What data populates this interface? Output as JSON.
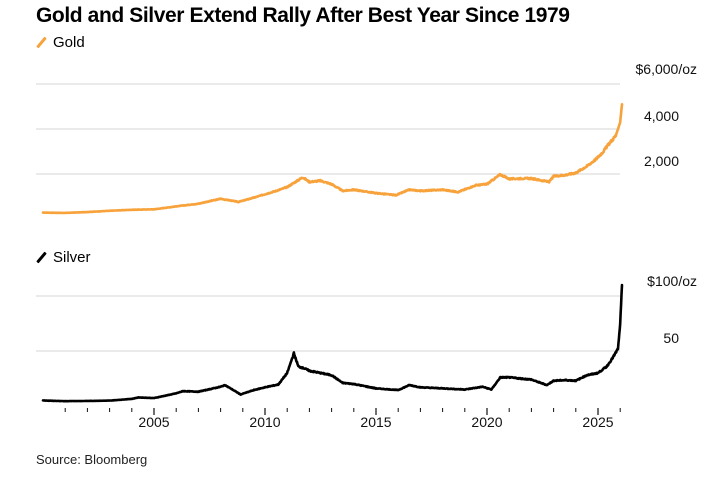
{
  "title": "Gold and Silver Extend Rally After Best Year Since 1979",
  "source": "Source: Bloomberg",
  "colors": {
    "gold": "#f7a23a",
    "silver": "#000000",
    "grid": "#dddddd"
  },
  "chart_data": [
    {
      "type": "line",
      "title": "Gold",
      "legend": "Gold",
      "legend_placement": "top-left",
      "unit_label": "$6,000/oz",
      "ylabel": "",
      "ylim": [
        0,
        6000
      ],
      "yticks": [
        2000,
        4000,
        6000
      ],
      "ytick_labels": [
        "2,000",
        "4,000",
        "$6,000/oz"
      ],
      "grid": true,
      "x": [
        2000.0,
        2001.0,
        2002.0,
        2003.0,
        2004.0,
        2005.0,
        2006.0,
        2006.5,
        2007.0,
        2008.0,
        2008.8,
        2009.5,
        2010.0,
        2010.5,
        2011.0,
        2011.7,
        2012.0,
        2012.5,
        2013.0,
        2013.5,
        2014.0,
        2015.0,
        2015.9,
        2016.5,
        2017.0,
        2018.0,
        2018.7,
        2019.5,
        2020.0,
        2020.6,
        2021.0,
        2021.5,
        2022.0,
        2022.8,
        2023.0,
        2023.5,
        2024.0,
        2024.5,
        2024.9,
        2025.2,
        2025.5,
        2025.8,
        2026.0,
        2026.08
      ],
      "series": [
        {
          "name": "Gold",
          "values": [
            285,
            270,
            310,
            365,
            410,
            430,
            560,
            620,
            680,
            900,
            760,
            950,
            1100,
            1250,
            1420,
            1850,
            1650,
            1700,
            1550,
            1250,
            1300,
            1150,
            1060,
            1300,
            1250,
            1300,
            1200,
            1500,
            1550,
            1980,
            1780,
            1800,
            1800,
            1650,
            1900,
            1950,
            2050,
            2350,
            2650,
            2950,
            3350,
            3700,
            4300,
            5100
          ]
        }
      ]
    },
    {
      "type": "line",
      "title": "Silver",
      "legend": "Silver",
      "legend_placement": "top-left",
      "unit_label": "$100/oz",
      "ylabel": "",
      "ylim": [
        0,
        100
      ],
      "yticks": [
        50,
        100
      ],
      "ytick_labels": [
        "50",
        "$100/oz"
      ],
      "grid": true,
      "xlabel": "",
      "xticks_major": [
        2005,
        2010,
        2015,
        2020,
        2025
      ],
      "xtick_labels": [
        "2005",
        "2010",
        "2015",
        "2020",
        "2025"
      ],
      "xticks_minor": [
        2001,
        2002,
        2003,
        2004,
        2006,
        2007,
        2008,
        2009,
        2011,
        2012,
        2013,
        2014,
        2016,
        2017,
        2018,
        2019,
        2021,
        2022,
        2023,
        2024,
        2026
      ],
      "x": [
        2000.0,
        2001.0,
        2002.0,
        2003.0,
        2004.0,
        2004.3,
        2005.0,
        2006.0,
        2006.3,
        2007.0,
        2008.0,
        2008.2,
        2008.9,
        2009.5,
        2010.0,
        2010.6,
        2011.0,
        2011.3,
        2011.5,
        2011.8,
        2012.0,
        2012.5,
        2013.0,
        2013.5,
        2014.0,
        2015.0,
        2016.0,
        2016.5,
        2017.0,
        2018.0,
        2019.0,
        2019.8,
        2020.2,
        2020.6,
        2021.0,
        2021.5,
        2022.0,
        2022.7,
        2023.0,
        2023.5,
        2024.0,
        2024.5,
        2025.0,
        2025.4,
        2025.7,
        2025.9,
        2026.0,
        2026.08
      ],
      "series": [
        {
          "name": "Silver",
          "values": [
            5.0,
            4.4,
            4.6,
            4.9,
            6.5,
            7.8,
            7.2,
            11.5,
            13.5,
            13.0,
            17.5,
            19.0,
            10.5,
            14.5,
            17.0,
            19.5,
            30.0,
            48.0,
            36.0,
            34.0,
            32.0,
            30.0,
            28.0,
            21.0,
            20.0,
            16.0,
            14.5,
            19.0,
            17.0,
            16.0,
            15.0,
            17.5,
            15.0,
            26.0,
            26.0,
            25.0,
            24.0,
            19.0,
            23.0,
            23.5,
            23.0,
            28.0,
            30.0,
            36.0,
            45.0,
            52.0,
            75.0,
            110.0
          ]
        }
      ]
    }
  ]
}
